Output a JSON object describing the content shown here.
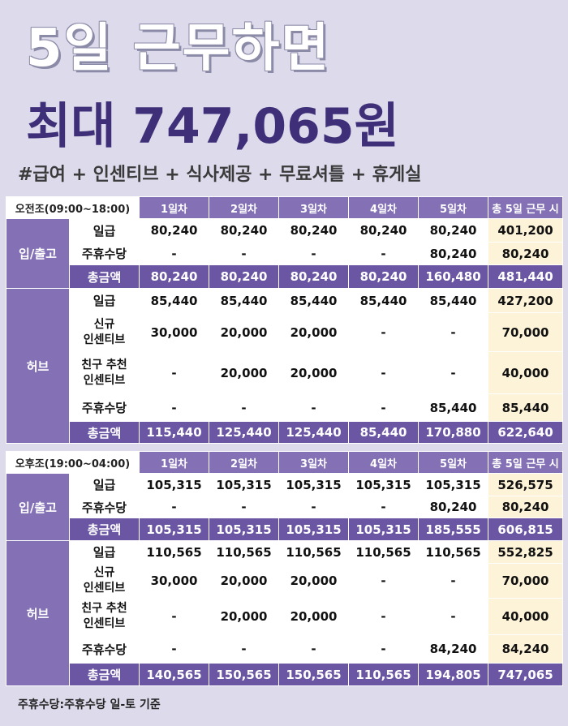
{
  "header": {
    "title_line1": "5일 근무하면",
    "title_line2": "최대 747,065원",
    "hashtags": "#급여 + 인센티브 + 식사제공 + 무료셔틀  + 휴게실"
  },
  "day_columns": [
    "1일차",
    "2일차",
    "3일차",
    "4일차",
    "5일차"
  ],
  "total_column": "총 5일 근무 시",
  "groups": {
    "inout": "입/출고",
    "hub": "허브"
  },
  "row_labels": {
    "daily": "일급",
    "weekly": "주휴수당",
    "total": "총금액",
    "new_incentive_1": "신규",
    "new_incentive_2": "인센티브",
    "referral_incentive_1": "친구 추천",
    "referral_incentive_2": "인센티브"
  },
  "am": {
    "shift": "오전조(09:00~18:00)",
    "inout": {
      "daily": [
        "80,240",
        "80,240",
        "80,240",
        "80,240",
        "80,240",
        "401,200"
      ],
      "weekly": [
        "-",
        "-",
        "-",
        "-",
        "80,240",
        "80,240"
      ],
      "total": [
        "80,240",
        "80,240",
        "80,240",
        "80,240",
        "160,480",
        "481,440"
      ]
    },
    "hub": {
      "daily": [
        "85,440",
        "85,440",
        "85,440",
        "85,440",
        "85,440",
        "427,200"
      ],
      "new_incentive": [
        "30,000",
        "20,000",
        "20,000",
        "-",
        "-",
        "70,000"
      ],
      "referral_incentive": [
        "-",
        "20,000",
        "20,000",
        "-",
        "-",
        "40,000"
      ],
      "weekly": [
        "-",
        "-",
        "-",
        "-",
        "85,440",
        "85,440"
      ],
      "total": [
        "115,440",
        "125,440",
        "125,440",
        "85,440",
        "170,880",
        "622,640"
      ]
    }
  },
  "pm": {
    "shift": "오후조(19:00~04:00)",
    "inout": {
      "daily": [
        "105,315",
        "105,315",
        "105,315",
        "105,315",
        "105,315",
        "526,575"
      ],
      "weekly": [
        "-",
        "-",
        "-",
        "-",
        "80,240",
        "80,240"
      ],
      "total": [
        "105,315",
        "105,315",
        "105,315",
        "105,315",
        "185,555",
        "606,815"
      ]
    },
    "hub": {
      "daily": [
        "110,565",
        "110,565",
        "110,565",
        "110,565",
        "110,565",
        "552,825"
      ],
      "new_incentive": [
        "30,000",
        "20,000",
        "20,000",
        "-",
        "-",
        "70,000"
      ],
      "referral_incentive": [
        "-",
        "20,000",
        "20,000",
        "-",
        "-",
        "40,000"
      ],
      "weekly": [
        "-",
        "-",
        "-",
        "-",
        "84,240",
        "84,240"
      ],
      "total": [
        "140,565",
        "150,565",
        "150,565",
        "110,565",
        "194,805",
        "747,065"
      ]
    }
  },
  "footnote": "주휴수당:주휴수당 일-토 기준"
}
